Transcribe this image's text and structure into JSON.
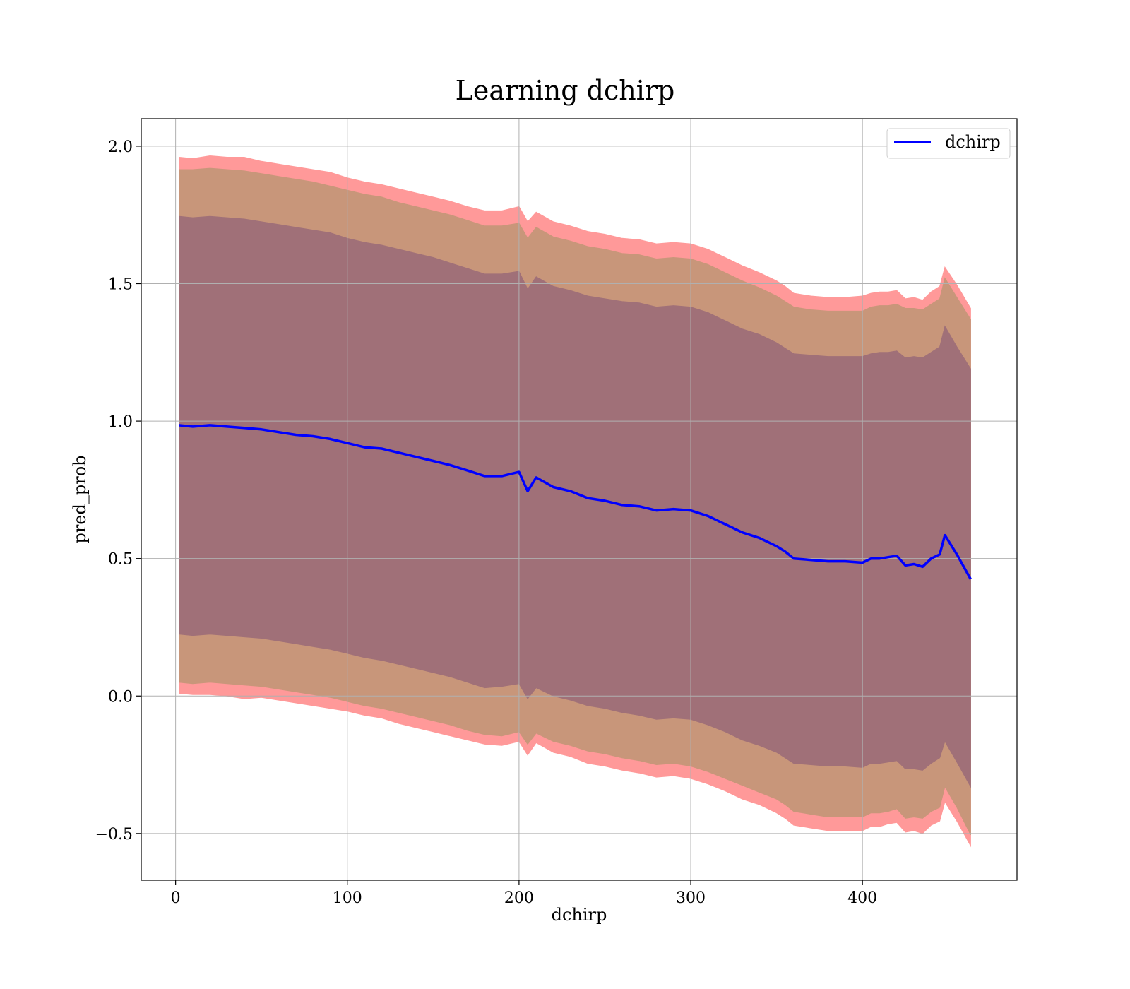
{
  "chart_data": {
    "type": "area",
    "title": "Learning dchirp",
    "xlabel": "dchirp",
    "ylabel": "pred_prob",
    "xlim": [
      -20,
      490
    ],
    "ylim": [
      -0.67,
      2.1
    ],
    "xticks": [
      0,
      100,
      200,
      300,
      400
    ],
    "xtick_labels": [
      "0",
      "100",
      "200",
      "300",
      "400"
    ],
    "yticks": [
      -0.5,
      0.0,
      0.5,
      1.0,
      1.5,
      2.0
    ],
    "ytick_labels": [
      "−0.5",
      "0.0",
      "0.5",
      "1.0",
      "1.5",
      "2.0"
    ],
    "grid": true,
    "legend": {
      "position": "top-right",
      "entries": [
        "dchirp"
      ]
    },
    "colors": {
      "mean_line": "#0000ff",
      "band_3sigma": "#ff9999",
      "band_2sigma": "#c8967a",
      "band_1sigma": "#a07078"
    },
    "x": [
      2,
      10,
      20,
      30,
      40,
      50,
      60,
      70,
      80,
      90,
      100,
      110,
      120,
      130,
      140,
      150,
      160,
      170,
      180,
      190,
      200,
      205,
      210,
      220,
      230,
      240,
      250,
      260,
      270,
      280,
      290,
      300,
      310,
      320,
      330,
      340,
      350,
      355,
      360,
      370,
      380,
      390,
      400,
      405,
      410,
      415,
      420,
      425,
      430,
      435,
      440,
      445,
      448,
      455,
      463
    ],
    "series": [
      {
        "name": "dchirp",
        "values": [
          0.985,
          0.98,
          0.985,
          0.98,
          0.975,
          0.97,
          0.96,
          0.95,
          0.945,
          0.935,
          0.92,
          0.905,
          0.9,
          0.885,
          0.87,
          0.855,
          0.84,
          0.82,
          0.8,
          0.8,
          0.815,
          0.745,
          0.795,
          0.76,
          0.745,
          0.72,
          0.71,
          0.695,
          0.69,
          0.675,
          0.68,
          0.675,
          0.655,
          0.625,
          0.595,
          0.575,
          0.545,
          0.525,
          0.5,
          0.495,
          0.49,
          0.49,
          0.485,
          0.5,
          0.5,
          0.505,
          0.51,
          0.475,
          0.48,
          0.47,
          0.5,
          0.515,
          0.585,
          0.515,
          0.425
        ]
      }
    ],
    "bands": [
      {
        "level": "3sigma",
        "upper": [
          1.96,
          1.955,
          1.965,
          1.96,
          1.96,
          1.945,
          1.935,
          1.925,
          1.915,
          1.905,
          1.885,
          1.87,
          1.86,
          1.845,
          1.83,
          1.815,
          1.8,
          1.78,
          1.765,
          1.765,
          1.78,
          1.725,
          1.76,
          1.725,
          1.71,
          1.69,
          1.68,
          1.665,
          1.66,
          1.645,
          1.65,
          1.645,
          1.625,
          1.595,
          1.565,
          1.54,
          1.51,
          1.49,
          1.465,
          1.455,
          1.45,
          1.45,
          1.455,
          1.465,
          1.47,
          1.47,
          1.475,
          1.445,
          1.45,
          1.44,
          1.47,
          1.49,
          1.56,
          1.495,
          1.41
        ],
        "lower": [
          0.01,
          0.005,
          0.005,
          0.0,
          -0.01,
          -0.005,
          -0.015,
          -0.025,
          -0.035,
          -0.045,
          -0.055,
          -0.07,
          -0.08,
          -0.1,
          -0.115,
          -0.13,
          -0.145,
          -0.16,
          -0.175,
          -0.18,
          -0.165,
          -0.215,
          -0.17,
          -0.205,
          -0.22,
          -0.245,
          -0.255,
          -0.27,
          -0.28,
          -0.295,
          -0.29,
          -0.3,
          -0.32,
          -0.345,
          -0.375,
          -0.395,
          -0.425,
          -0.445,
          -0.47,
          -0.48,
          -0.49,
          -0.49,
          -0.49,
          -0.475,
          -0.475,
          -0.465,
          -0.46,
          -0.495,
          -0.49,
          -0.5,
          -0.47,
          -0.455,
          -0.385,
          -0.455,
          -0.545
        ]
      },
      {
        "level": "2sigma",
        "upper": [
          1.915,
          1.915,
          1.92,
          1.915,
          1.91,
          1.9,
          1.89,
          1.88,
          1.87,
          1.855,
          1.84,
          1.825,
          1.815,
          1.795,
          1.78,
          1.765,
          1.75,
          1.73,
          1.71,
          1.71,
          1.72,
          1.665,
          1.705,
          1.67,
          1.655,
          1.635,
          1.625,
          1.61,
          1.605,
          1.59,
          1.595,
          1.59,
          1.57,
          1.54,
          1.51,
          1.485,
          1.455,
          1.435,
          1.415,
          1.405,
          1.4,
          1.4,
          1.4,
          1.415,
          1.42,
          1.42,
          1.425,
          1.41,
          1.41,
          1.405,
          1.425,
          1.445,
          1.52,
          1.45,
          1.37
        ],
        "lower": [
          0.05,
          0.045,
          0.05,
          0.045,
          0.04,
          0.035,
          0.025,
          0.015,
          0.005,
          -0.005,
          -0.02,
          -0.035,
          -0.045,
          -0.06,
          -0.075,
          -0.09,
          -0.105,
          -0.125,
          -0.14,
          -0.145,
          -0.13,
          -0.175,
          -0.135,
          -0.165,
          -0.18,
          -0.2,
          -0.21,
          -0.225,
          -0.235,
          -0.25,
          -0.245,
          -0.255,
          -0.275,
          -0.3,
          -0.325,
          -0.35,
          -0.375,
          -0.395,
          -0.42,
          -0.43,
          -0.44,
          -0.44,
          -0.44,
          -0.425,
          -0.425,
          -0.42,
          -0.41,
          -0.445,
          -0.44,
          -0.445,
          -0.42,
          -0.405,
          -0.33,
          -0.405,
          -0.505
        ]
      },
      {
        "level": "1sigma",
        "upper": [
          1.745,
          1.74,
          1.745,
          1.74,
          1.735,
          1.725,
          1.715,
          1.705,
          1.695,
          1.685,
          1.665,
          1.65,
          1.64,
          1.625,
          1.61,
          1.595,
          1.575,
          1.555,
          1.535,
          1.535,
          1.545,
          1.48,
          1.525,
          1.49,
          1.475,
          1.455,
          1.445,
          1.435,
          1.43,
          1.415,
          1.42,
          1.415,
          1.395,
          1.365,
          1.335,
          1.315,
          1.285,
          1.265,
          1.245,
          1.24,
          1.235,
          1.235,
          1.235,
          1.245,
          1.25,
          1.25,
          1.255,
          1.23,
          1.235,
          1.23,
          1.25,
          1.27,
          1.345,
          1.27,
          1.19
        ],
        "lower": [
          0.225,
          0.22,
          0.225,
          0.22,
          0.215,
          0.21,
          0.2,
          0.19,
          0.18,
          0.17,
          0.155,
          0.14,
          0.13,
          0.115,
          0.1,
          0.085,
          0.07,
          0.05,
          0.03,
          0.035,
          0.045,
          -0.01,
          0.03,
          0.0,
          -0.015,
          -0.035,
          -0.045,
          -0.06,
          -0.07,
          -0.085,
          -0.08,
          -0.085,
          -0.105,
          -0.13,
          -0.16,
          -0.18,
          -0.205,
          -0.225,
          -0.245,
          -0.25,
          -0.255,
          -0.255,
          -0.26,
          -0.245,
          -0.245,
          -0.24,
          -0.235,
          -0.265,
          -0.265,
          -0.27,
          -0.245,
          -0.225,
          -0.165,
          -0.24,
          -0.33
        ]
      }
    ]
  }
}
